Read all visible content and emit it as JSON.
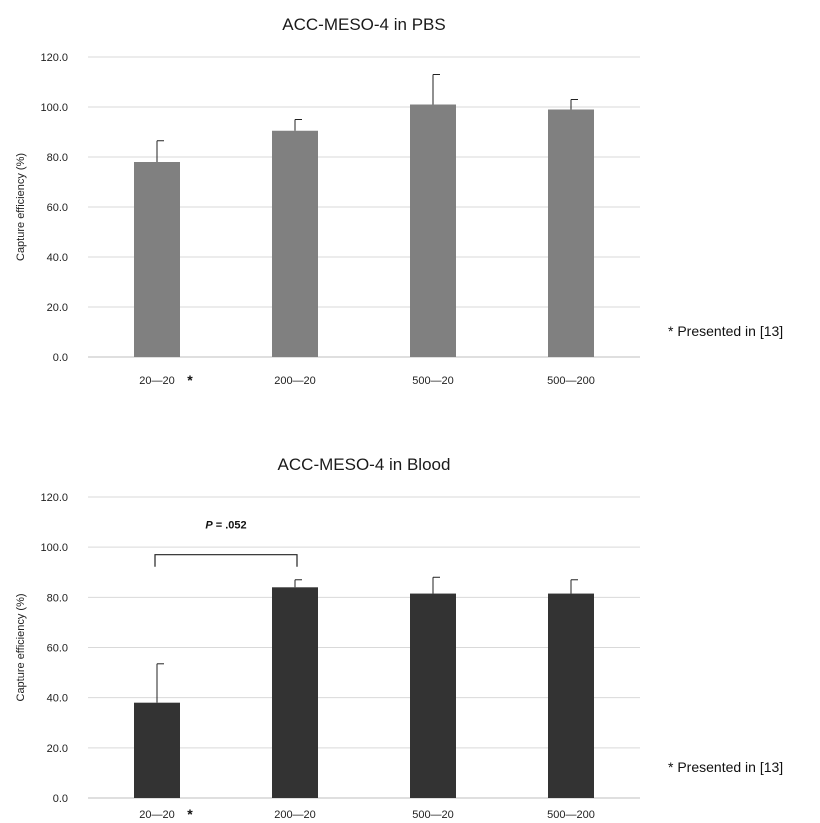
{
  "chart_data": [
    {
      "type": "bar",
      "title": "ACC-MESO-4 in PBS",
      "ylabel": "Capture efficiency (%)",
      "xlabel": "",
      "ylim": [
        0,
        120
      ],
      "yticks": [
        "0.0",
        "20.0",
        "40.0",
        "60.0",
        "80.0",
        "100.0",
        "120.0"
      ],
      "categories": [
        "20—20",
        "200—20",
        "500—20",
        "500—200"
      ],
      "values": [
        78,
        90.5,
        101,
        99
      ],
      "errors": [
        8.5,
        4.5,
        12,
        4
      ],
      "bar_color": "#808080",
      "category_marker": {
        "index": 0,
        "text": "*"
      },
      "note": "* Presented in [13]",
      "grid": true
    },
    {
      "type": "bar",
      "title": "ACC-MESO-4 in Blood",
      "ylabel": "Capture efficiency (%)",
      "xlabel": "",
      "ylim": [
        0,
        120
      ],
      "yticks": [
        "0.0",
        "20.0",
        "40.0",
        "60.0",
        "80.0",
        "100.0",
        "120.0"
      ],
      "categories": [
        "20—20",
        "200—20",
        "500—20",
        "500—200"
      ],
      "values": [
        38,
        84,
        81.5,
        81.5
      ],
      "errors": [
        15.5,
        3,
        6.5,
        5.5
      ],
      "bar_color": "#333333",
      "category_marker": {
        "index": 0,
        "text": "*"
      },
      "note": "* Presented in [13]",
      "grid": true,
      "annotation": {
        "p_label": "P",
        "p_value": "= .052",
        "from": 0,
        "to": 1,
        "level": 97
      }
    }
  ]
}
